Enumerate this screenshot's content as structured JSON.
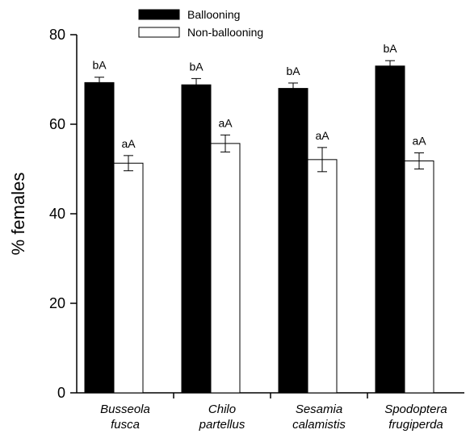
{
  "chart_data": {
    "type": "bar",
    "ylabel": "% females",
    "ylim": [
      0,
      80
    ],
    "yticks": [
      0,
      20,
      40,
      60,
      80
    ],
    "grid": false,
    "legend_position": "top-left",
    "categories": [
      [
        "Busseola",
        "fusca"
      ],
      [
        "Chilo",
        "partellus"
      ],
      [
        "Sesamia",
        "calamistis"
      ],
      [
        "Spodoptera",
        "frugiperda"
      ]
    ],
    "series": [
      {
        "name": "Ballooning",
        "color": "#000000",
        "values": [
          69.3,
          68.8,
          68.0,
          73.0
        ],
        "errors": [
          1.2,
          1.4,
          1.2,
          1.2
        ],
        "labels": [
          "bA",
          "bA",
          "bA",
          "bA"
        ]
      },
      {
        "name": "Non-ballooning",
        "color": "#ffffff",
        "values": [
          51.3,
          55.7,
          52.1,
          51.8
        ],
        "errors": [
          1.7,
          1.9,
          2.7,
          1.8
        ],
        "labels": [
          "aA",
          "aA",
          "aA",
          "aA"
        ]
      }
    ]
  }
}
